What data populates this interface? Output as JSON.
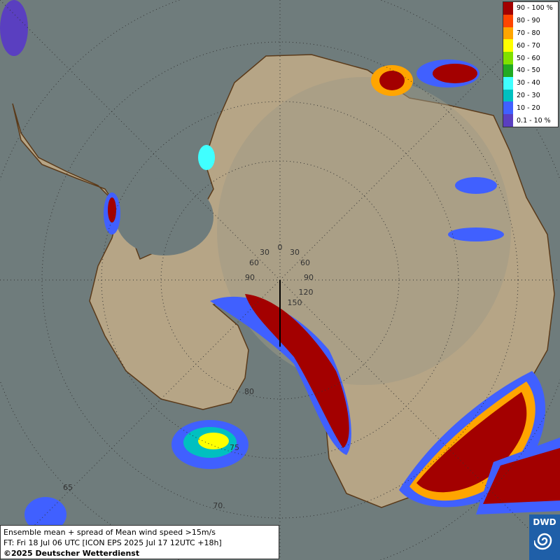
{
  "legend": {
    "entries": [
      {
        "label": "90 - 100 %",
        "color": "#a30000"
      },
      {
        "label": "80 - 90",
        "color": "#ff4500"
      },
      {
        "label": "70 - 80",
        "color": "#ffa500"
      },
      {
        "label": "60 - 70",
        "color": "#ffff00"
      },
      {
        "label": "50 - 60",
        "color": "#80e000"
      },
      {
        "label": "40 - 50",
        "color": "#22aa22"
      },
      {
        "label": "30 - 40",
        "color": "#40ffff"
      },
      {
        "label": "20 - 30",
        "color": "#00c0c0"
      },
      {
        "label": "10 - 20",
        "color": "#4060ff"
      },
      {
        "label": "0.1 - 10 %",
        "color": "#5a3fc0"
      }
    ]
  },
  "graticule_labels": [
    "30",
    "0",
    "30",
    "60",
    "60",
    "90",
    "90",
    "120",
    "150",
    "80",
    "75",
    "70.",
    "65"
  ],
  "caption": {
    "lines": [
      "Ensemble mean + spread of Mean wind speed >15m/s",
      "FT: Fri 18 Jul 06 UTC [ICON EPS 2025 Jul 17 12UTC +18h]",
      "©2025 Deutscher Wetterdienst"
    ]
  },
  "logo": {
    "text": "DWD"
  }
}
